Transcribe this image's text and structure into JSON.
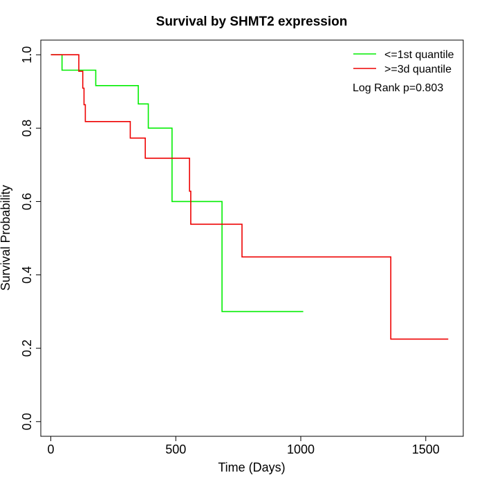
{
  "chart_data": {
    "type": "line",
    "step": true,
    "title": "Survival by SHMT2 expression",
    "xlabel": "Time (Days)",
    "ylabel": "Survival Probability",
    "xlim": [
      -40,
      1650
    ],
    "ylim": [
      -0.04,
      1.04
    ],
    "xticks": [
      0,
      500,
      1000,
      1500
    ],
    "yticks": [
      0.0,
      0.2,
      0.4,
      0.6,
      0.8,
      1.0
    ],
    "xtick_labels": [
      "0",
      "500",
      "1000",
      "1500"
    ],
    "ytick_labels": [
      "0.0",
      "0.2",
      "0.4",
      "0.6",
      "0.8",
      "1.0"
    ],
    "grid": false,
    "legend_position": "top-right",
    "annotation": "Log Rank p=0.803",
    "series": [
      {
        "name": "<=1st quantile",
        "color": "#00ee00",
        "x": [
          0,
          45,
          45,
          180,
          180,
          350,
          350,
          390,
          390,
          485,
          485,
          685,
          685,
          1010
        ],
        "y": [
          1.0,
          1.0,
          0.958,
          0.958,
          0.916,
          0.916,
          0.866,
          0.866,
          0.8,
          0.8,
          0.6,
          0.6,
          0.3,
          0.3
        ]
      },
      {
        "name": ">=3d quantile",
        "color": "#ee0000",
        "x": [
          0,
          112,
          112,
          128,
          128,
          133,
          133,
          138,
          138,
          318,
          318,
          378,
          378,
          555,
          555,
          560,
          560,
          765,
          765,
          1360,
          1360,
          1590
        ],
        "y": [
          1.0,
          1.0,
          0.955,
          0.955,
          0.909,
          0.909,
          0.864,
          0.864,
          0.818,
          0.818,
          0.773,
          0.773,
          0.718,
          0.718,
          0.628,
          0.628,
          0.538,
          0.538,
          0.449,
          0.449,
          0.225,
          0.225
        ]
      }
    ]
  }
}
